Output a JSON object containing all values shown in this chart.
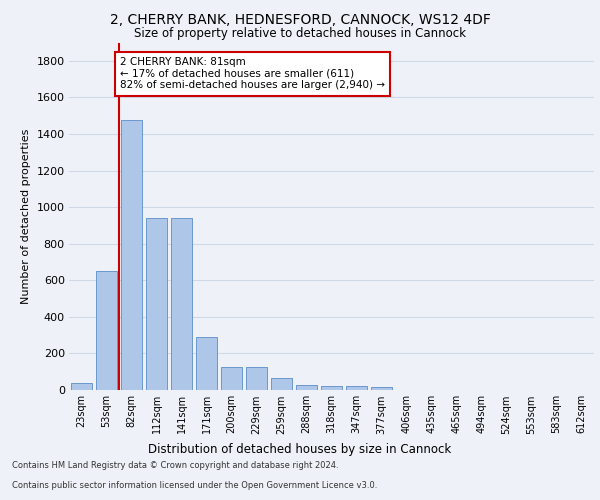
{
  "title_line1": "2, CHERRY BANK, HEDNESFORD, CANNOCK, WS12 4DF",
  "title_line2": "Size of property relative to detached houses in Cannock",
  "xlabel": "Distribution of detached houses by size in Cannock",
  "ylabel": "Number of detached properties",
  "categories": [
    "23sqm",
    "53sqm",
    "82sqm",
    "112sqm",
    "141sqm",
    "171sqm",
    "200sqm",
    "229sqm",
    "259sqm",
    "288sqm",
    "318sqm",
    "347sqm",
    "377sqm",
    "406sqm",
    "435sqm",
    "465sqm",
    "494sqm",
    "524sqm",
    "553sqm",
    "583sqm",
    "612sqm"
  ],
  "values": [
    40,
    650,
    1475,
    940,
    940,
    290,
    125,
    125,
    65,
    25,
    20,
    20,
    15,
    0,
    0,
    0,
    0,
    0,
    0,
    0,
    0
  ],
  "bar_color": "#aec6e8",
  "bar_edge_color": "#5b8dc8",
  "grid_color": "#d0d8e8",
  "annotation_text": "2 CHERRY BANK: 81sqm\n← 17% of detached houses are smaller (611)\n82% of semi-detached houses are larger (2,940) →",
  "annotation_box_color": "#ffffff",
  "annotation_box_edge": "#cc0000",
  "vline_color": "#cc0000",
  "ylim": [
    0,
    1900
  ],
  "yticks": [
    0,
    200,
    400,
    600,
    800,
    1000,
    1200,
    1400,
    1600,
    1800
  ],
  "footer_line1": "Contains HM Land Registry data © Crown copyright and database right 2024.",
  "footer_line2": "Contains public sector information licensed under the Open Government Licence v3.0.",
  "background_color": "#eef2f8",
  "plot_bg_color": "#eef2f8"
}
